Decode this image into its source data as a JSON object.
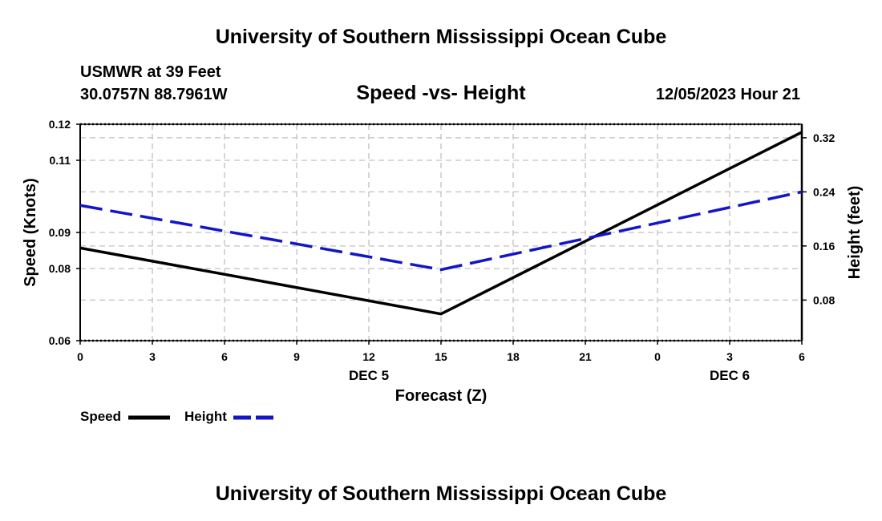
{
  "header": {
    "title_top": "University of Southern Mississippi Ocean Cube",
    "title_bottom": "University of Southern Mississippi Ocean Cube",
    "station": "USMWR at 39 Feet",
    "coords": "30.0757N  88.7961W",
    "plot_title": "Speed -vs- Height",
    "datetime": "12/05/2023 Hour 21"
  },
  "chart_data": {
    "type": "line",
    "title": "Speed -vs- Height",
    "xlabel": "Forecast (Z)",
    "ylabel_left": "Speed (Knots)",
    "ylabel_right": "Height (feet)",
    "x": [
      0,
      3,
      6,
      9,
      12,
      15,
      18,
      21,
      24,
      27,
      30
    ],
    "x_tick_labels": [
      "0",
      "3",
      "6",
      "9",
      "12",
      "15",
      "18",
      "21",
      "0",
      "3",
      "6"
    ],
    "date_labels": [
      {
        "x": 12,
        "label": "DEC 5"
      },
      {
        "x": 27,
        "label": "DEC 6"
      }
    ],
    "xlim": [
      0,
      30
    ],
    "ylim_left": [
      0.06,
      0.12
    ],
    "ylim_right": [
      0.02,
      0.34
    ],
    "left_ticks": [
      0.06,
      0.08,
      0.09,
      0.11,
      0.12
    ],
    "left_tick_labels": [
      "0.06",
      "0.08",
      "0.09",
      "0.11",
      "0.12"
    ],
    "right_ticks": [
      0.08,
      0.16,
      0.24,
      0.32
    ],
    "right_tick_labels": [
      "0.08",
      "0.16",
      "0.24",
      "0.32"
    ],
    "grid": true,
    "series": [
      {
        "name": "Speed",
        "axis": "left",
        "color": "#000000",
        "style": "solid",
        "points": [
          [
            0,
            0.0857
          ],
          [
            15,
            0.0674
          ],
          [
            30,
            0.1178
          ]
        ]
      },
      {
        "name": "Height",
        "axis": "right",
        "color": "#1414c8",
        "style": "dashed",
        "points": [
          [
            0,
            0.22
          ],
          [
            15,
            0.125
          ],
          [
            30,
            0.24
          ]
        ]
      }
    ],
    "legend": [
      "Speed",
      "Height"
    ]
  }
}
